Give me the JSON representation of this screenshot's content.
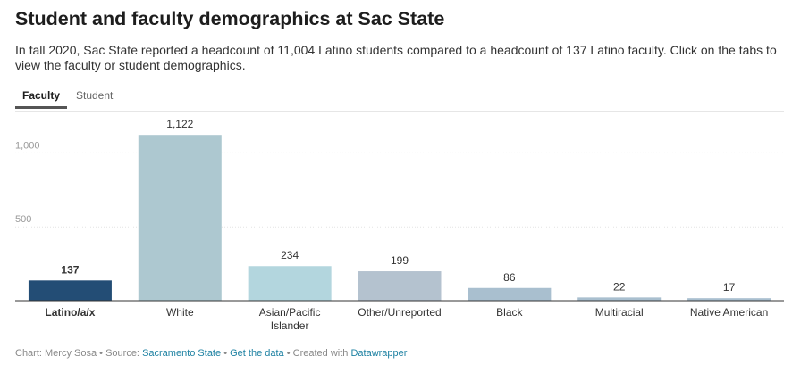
{
  "header": {
    "title": "Student and faculty demographics at Sac State",
    "description": "In fall 2020, Sac State reported a headcount of 11,004 Latino students compared to a headcount of 137 Latino faculty. Click on the tabs to view the faculty or student demographics."
  },
  "tabs": [
    {
      "label": "Faculty",
      "active": true
    },
    {
      "label": "Student",
      "active": false
    }
  ],
  "chart_data": {
    "type": "bar",
    "categories": [
      "Latino/a/x",
      "White",
      "Asian/Pacific Islander",
      "Other/Unreported",
      "Black",
      "Multiracial",
      "Native American"
    ],
    "category_lines": [
      [
        "Latino/a/x"
      ],
      [
        "White"
      ],
      [
        "Asian/Pacific",
        "Islander"
      ],
      [
        "Other/Unreported"
      ],
      [
        "Black"
      ],
      [
        "Multiracial"
      ],
      [
        "Native American"
      ]
    ],
    "values": [
      137,
      1122,
      234,
      199,
      86,
      22,
      17
    ],
    "value_labels": [
      "137",
      "1,122",
      "234",
      "199",
      "86",
      "22",
      "17"
    ],
    "highlight_index": 0,
    "colors": [
      "#234d75",
      "#adc8d0",
      "#b3d6de",
      "#b4c2cf",
      "#a9bfcf",
      "#a9bfcf",
      "#a9bfcf"
    ],
    "y_ticks": [
      500,
      1000
    ],
    "y_tick_labels": [
      "500",
      "1,000"
    ],
    "ylim": [
      0,
      1200
    ],
    "grid": true
  },
  "footer": {
    "chart_prefix": "Chart: Mercy Sosa",
    "source_prefix": "Source:",
    "source_link": "Sacramento State",
    "data_link": "Get the data",
    "created_prefix": "Created with",
    "created_link": "Datawrapper",
    "separator": "•"
  }
}
